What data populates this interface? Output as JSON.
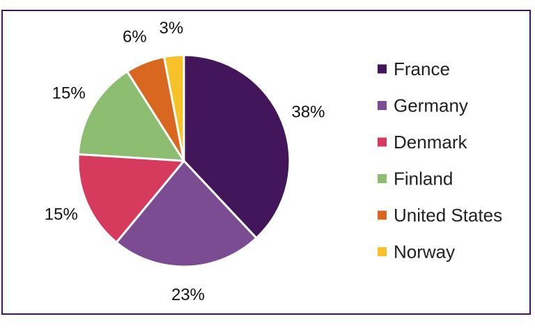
{
  "chart_data": {
    "type": "pie",
    "categories": [
      "France",
      "Germany",
      "Denmark",
      "Finland",
      "United States",
      "Norway"
    ],
    "values": [
      38,
      23,
      15,
      15,
      6,
      3
    ],
    "labels": [
      "38%",
      "23%",
      "15%",
      "15%",
      "6%",
      "3%"
    ],
    "colors": [
      "#43155a",
      "#7b4c92",
      "#d63b5e",
      "#8cbd70",
      "#d9671f",
      "#f6c227"
    ],
    "legend": {
      "placement": "right"
    },
    "start_angle_deg": 0,
    "direction": "clockwise"
  }
}
